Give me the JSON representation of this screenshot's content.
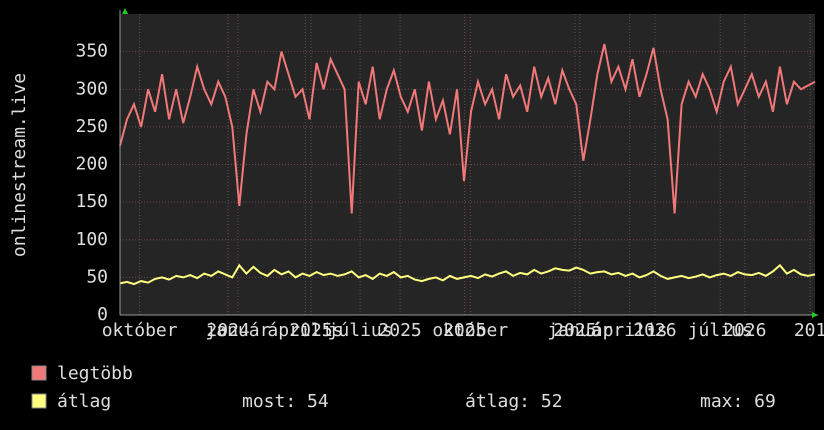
{
  "chart_data": {
    "type": "line",
    "y_label": "onlinestream.live",
    "x": [
      0,
      1,
      2,
      3,
      4,
      5,
      6,
      7,
      8,
      9,
      10,
      11,
      12,
      13,
      14,
      15,
      16,
      17,
      18,
      19,
      20,
      21,
      22,
      23,
      24,
      25,
      26,
      27,
      28,
      29,
      30,
      31,
      32,
      33,
      34,
      35,
      36,
      37,
      38,
      39,
      40,
      41,
      42,
      43,
      44,
      45,
      46,
      47,
      48,
      49,
      50,
      51,
      52,
      53,
      54,
      55,
      56,
      57,
      58,
      59,
      60,
      61,
      62,
      63,
      64,
      65,
      66,
      67,
      68,
      69,
      70,
      71,
      72,
      73,
      74,
      75,
      76,
      77,
      78,
      79,
      80,
      81,
      82,
      83,
      84,
      85,
      86,
      87,
      88,
      89,
      90,
      91,
      92,
      93,
      94,
      95,
      96,
      97,
      98,
      99
    ],
    "series": [
      {
        "name": "legtöbb",
        "color": "#f07878",
        "values": [
          225,
          260,
          280,
          250,
          300,
          270,
          320,
          260,
          300,
          255,
          290,
          330,
          300,
          280,
          310,
          290,
          250,
          145,
          240,
          300,
          270,
          310,
          300,
          350,
          320,
          290,
          300,
          260,
          335,
          300,
          340,
          320,
          300,
          135,
          310,
          280,
          330,
          260,
          300,
          325,
          290,
          270,
          300,
          245,
          310,
          260,
          285,
          240,
          300,
          178,
          270,
          310,
          280,
          300,
          260,
          320,
          290,
          305,
          270,
          330,
          290,
          315,
          280,
          325,
          300,
          280,
          205,
          260,
          320,
          360,
          310,
          330,
          300,
          340,
          290,
          320,
          355,
          300,
          260,
          135,
          280,
          310,
          290,
          320,
          300,
          270,
          310,
          330,
          280,
          300,
          320,
          290,
          310,
          270,
          330,
          280,
          310,
          300,
          305,
          310
        ]
      },
      {
        "name": "átlag",
        "color": "#ffff80",
        "values": [
          42,
          44,
          41,
          45,
          43,
          48,
          50,
          47,
          52,
          50,
          53,
          49,
          55,
          52,
          58,
          54,
          50,
          66,
          55,
          64,
          56,
          52,
          60,
          54,
          58,
          50,
          55,
          52,
          57,
          53,
          55,
          52,
          54,
          58,
          50,
          53,
          48,
          55,
          52,
          57,
          50,
          52,
          47,
          45,
          48,
          50,
          46,
          52,
          48,
          50,
          52,
          49,
          54,
          51,
          55,
          58,
          52,
          56,
          54,
          60,
          55,
          58,
          62,
          60,
          59,
          63,
          60,
          55,
          57,
          58,
          54,
          56,
          52,
          55,
          50,
          53,
          58,
          52,
          48,
          50,
          52,
          49,
          51,
          54,
          50,
          53,
          55,
          52,
          57,
          54,
          53,
          56,
          52,
          58,
          66,
          55,
          60,
          54,
          52,
          54
        ]
      }
    ],
    "legend_stats": [
      "most: 54",
      "átlag: 52",
      "max: 69"
    ],
    "xlim": [
      0,
      99
    ],
    "xticks": [
      {
        "value": 2.8,
        "label": "október"
      },
      {
        "value": 15.4,
        "label": "2024"
      },
      {
        "value": 16.8,
        "label": "január"
      },
      {
        "value": 26.4,
        "label": "április"
      },
      {
        "value": 27.2,
        "label": "2025"
      },
      {
        "value": 34.2,
        "label": "július"
      },
      {
        "value": 39.9,
        "label": "2025"
      },
      {
        "value": 49.1,
        "label": "2025"
      },
      {
        "value": 49.9,
        "label": "október"
      },
      {
        "value": 64.8,
        "label": "2025"
      },
      {
        "value": 65.5,
        "label": "január"
      },
      {
        "value": 72.6,
        "label": "április"
      },
      {
        "value": 76.2,
        "label": "2026"
      },
      {
        "value": 85.5,
        "label": "július"
      },
      {
        "value": 89,
        "label": "2026"
      },
      {
        "value": 98.3,
        "label": "201"
      }
    ],
    "ylim": [
      0,
      400
    ],
    "yticks": [
      0,
      50,
      100,
      150,
      200,
      250,
      300,
      350
    ],
    "grid": true
  }
}
